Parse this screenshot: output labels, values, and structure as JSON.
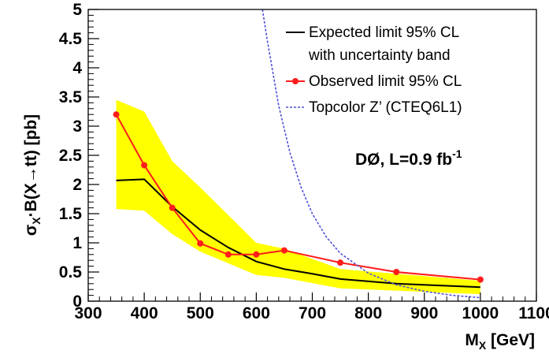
{
  "chart_data": {
    "type": "line",
    "xlabel_main": "M",
    "xlabel_sub": "X",
    "xlabel_unit": " [GeV]",
    "ylabel_prefix": "σ",
    "ylabel_sub": "X",
    "ylabel_rest": "·B(X→tt)  [pb]",
    "xlim": [
      300,
      1100
    ],
    "ylim": [
      0,
      5
    ],
    "x_ticks": [
      "300",
      "400",
      "500",
      "600",
      "700",
      "800",
      "900",
      "1000",
      "1100"
    ],
    "y_ticks": [
      "0",
      "0.5",
      "1",
      "1.5",
      "2",
      "2.5",
      "3",
      "3.5",
      "4",
      "4.5",
      "5"
    ],
    "annotation_main": "DØ, L=0.9 fb",
    "annotation_sup": "-1",
    "legend": {
      "expected_line1": "Expected limit 95% CL",
      "expected_line2": "with uncertainty band",
      "observed": "Observed limit 95% CL",
      "topcolor": "Topcolor Z’   (CTEQ6L1)"
    },
    "band": {
      "x": [
        350,
        400,
        450,
        500,
        600,
        650,
        750,
        1000
      ],
      "upper": [
        3.45,
        3.25,
        2.4,
        1.95,
        1.0,
        0.9,
        0.55,
        0.35
      ],
      "lower": [
        1.58,
        1.55,
        1.15,
        0.85,
        0.45,
        0.4,
        0.22,
        0.12
      ]
    },
    "series": [
      {
        "key": "expected",
        "x": [
          350,
          400,
          450,
          500,
          550,
          600,
          650,
          700,
          750,
          850,
          1000
        ],
        "y": [
          2.07,
          2.09,
          1.62,
          1.22,
          0.92,
          0.68,
          0.55,
          0.47,
          0.38,
          0.3,
          0.24
        ],
        "color": "#000000"
      },
      {
        "key": "observed",
        "x": [
          350,
          400,
          450,
          500,
          550,
          600,
          650,
          750,
          850,
          1000
        ],
        "y": [
          3.2,
          2.33,
          1.6,
          0.99,
          0.8,
          0.8,
          0.87,
          0.66,
          0.5,
          0.37
        ],
        "color": "#ff1c1c"
      },
      {
        "key": "topcolor",
        "x": [
          611,
          620,
          640,
          660,
          680,
          700,
          725,
          750,
          800,
          850,
          900,
          950,
          1000
        ],
        "y": [
          5.0,
          4.45,
          3.35,
          2.55,
          1.95,
          1.5,
          1.1,
          0.82,
          0.48,
          0.28,
          0.17,
          0.1,
          0.06
        ],
        "color": "#5050d8"
      }
    ],
    "colors": {
      "band": "#ffff00",
      "axis": "#000000"
    },
    "grid": false,
    "legend_position": "top-right"
  }
}
